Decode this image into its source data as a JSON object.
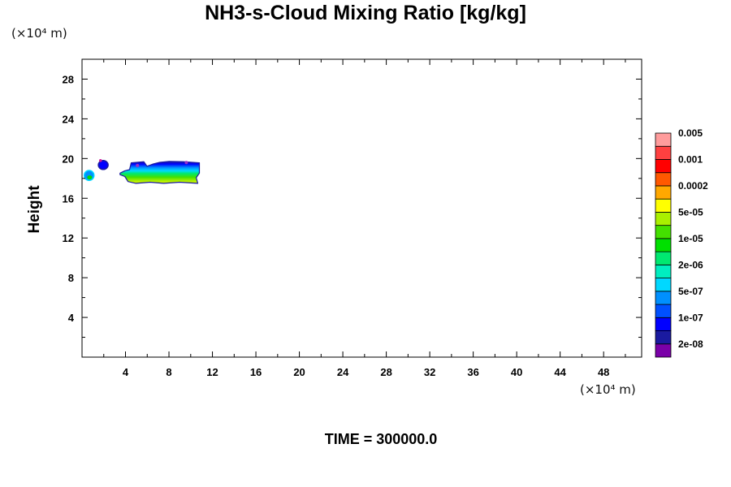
{
  "chart_data": {
    "type": "heatmap",
    "title": "NH3-s-Cloud Mixing Ratio [kg/kg]",
    "ylabel": "Height",
    "xlabel": "",
    "x_unit": "(×10⁴ m)",
    "y_unit": "(×10⁴ m)",
    "xlim": [
      0,
      51.5
    ],
    "ylim": [
      0,
      30
    ],
    "x_ticks": [
      4,
      8,
      12,
      16,
      20,
      24,
      28,
      32,
      36,
      40,
      44,
      48
    ],
    "y_ticks": [
      4,
      8,
      12,
      16,
      20,
      24,
      28
    ],
    "colorbar": {
      "colors": [
        "#7a00a8",
        "#1a1aa0",
        "#0000ff",
        "#0050ff",
        "#0090ff",
        "#00d8ff",
        "#00eec0",
        "#00e870",
        "#00e000",
        "#44e000",
        "#aaf000",
        "#ffff00",
        "#ffa800",
        "#ff5800",
        "#ff0000",
        "#ff4040",
        "#ff9c9c"
      ],
      "labels": [
        "2e-08",
        "1e-07",
        "5e-07",
        "2e-06",
        "1e-05",
        "5e-05",
        "0.0002",
        "0.001",
        "0.005"
      ]
    },
    "cloud_regions": [
      {
        "x": [
          0.2,
          1.1
        ],
        "y": [
          17.8,
          18.8
        ],
        "level": "2e-06"
      },
      {
        "x": [
          1.5,
          2.4
        ],
        "y": [
          18.9,
          19.8
        ],
        "level": "1e-07"
      },
      {
        "x": [
          3.5,
          10.8
        ],
        "y": [
          17.5,
          19.8
        ],
        "level": "5e-05"
      }
    ]
  },
  "time_label": "TIME = 300000.0"
}
